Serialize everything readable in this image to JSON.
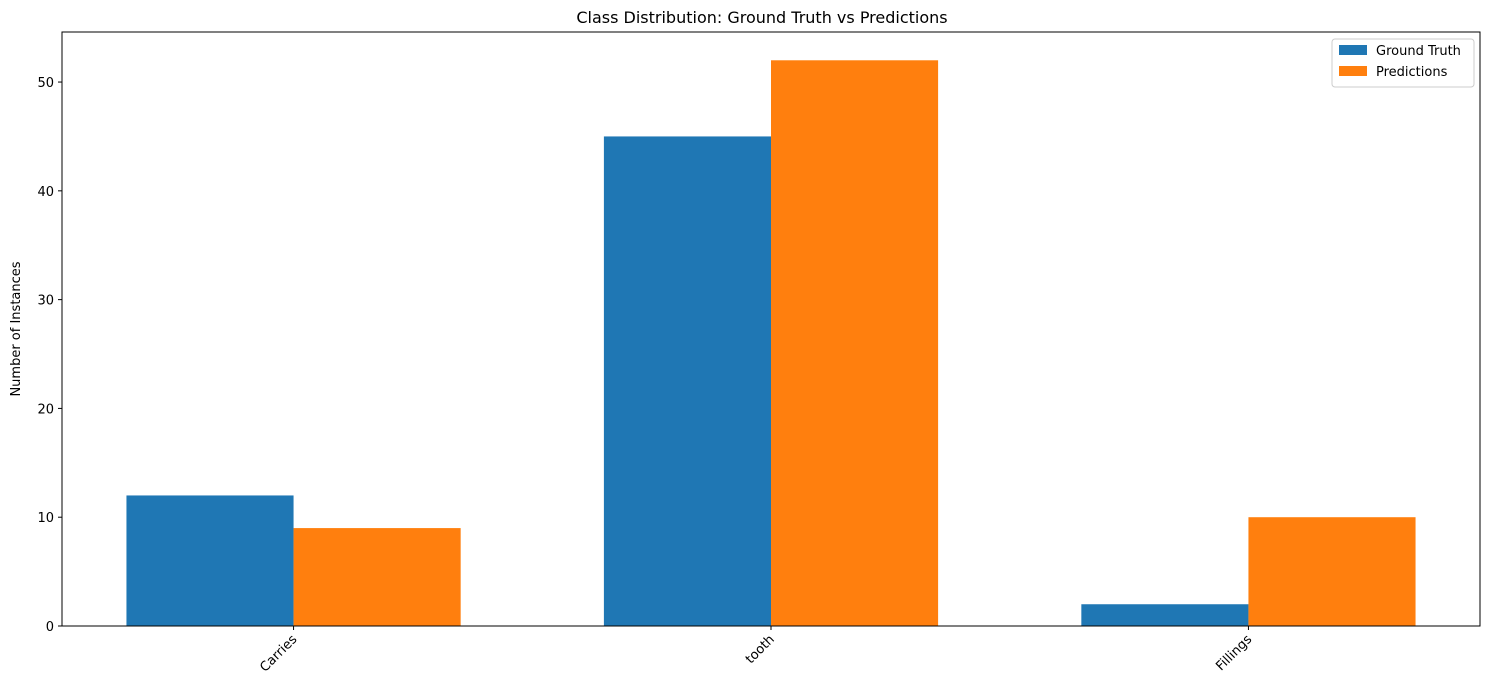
{
  "chart_data": {
    "type": "bar",
    "title": "Class Distribution: Ground Truth vs Predictions",
    "xlabel": "",
    "ylabel": "Number of Instances",
    "categories": [
      "Carries",
      "tooth",
      "Fillings"
    ],
    "series": [
      {
        "name": "Ground Truth",
        "values": [
          12,
          45,
          2
        ],
        "color": "#1f77b4"
      },
      {
        "name": "Predictions",
        "values": [
          9,
          52,
          10
        ],
        "color": "#ff7f0e"
      }
    ],
    "ylim": [
      0,
      54.6
    ],
    "yticks": [
      0,
      10,
      20,
      30,
      40,
      50
    ],
    "grid": false,
    "legend_position": "top-right"
  }
}
